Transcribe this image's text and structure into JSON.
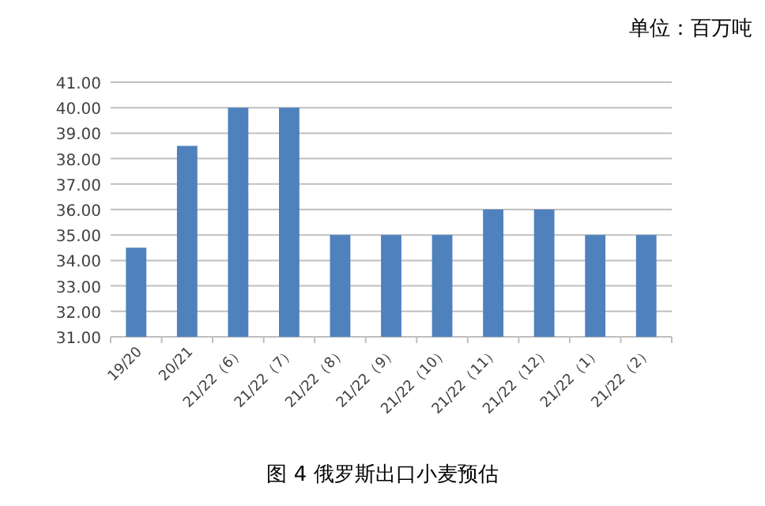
{
  "chart_data": {
    "type": "bar",
    "title": "图 4 俄罗斯出口小麦预估",
    "annotations": [
      "单位：百万吨"
    ],
    "categories": [
      "19/20",
      "20/21",
      "21/22（6）",
      "21/22（7）",
      "21/22（8）",
      "21/22（9）",
      "21/22（10）",
      "21/22（11）",
      "21/22（12）",
      "21/22（1）",
      "21/22（2）"
    ],
    "values": [
      34.5,
      38.5,
      40,
      40,
      35,
      35,
      35,
      36,
      36,
      35,
      35
    ],
    "color": "#4f81bd",
    "ylim": [
      31,
      41
    ],
    "yticks": [
      {
        "value": 31,
        "label": "31.00"
      },
      {
        "value": 32,
        "label": "32.00"
      },
      {
        "value": 33,
        "label": "33.00"
      },
      {
        "value": 34,
        "label": "34.00"
      },
      {
        "value": 35,
        "label": "35.00"
      },
      {
        "value": 36,
        "label": "36.00"
      },
      {
        "value": 37,
        "label": "37.00"
      },
      {
        "value": 38,
        "label": "38.00"
      },
      {
        "value": 39,
        "label": "39.00"
      },
      {
        "value": 40,
        "label": "40.00"
      },
      {
        "value": 41,
        "label": "41.00"
      }
    ],
    "grid": "y"
  }
}
